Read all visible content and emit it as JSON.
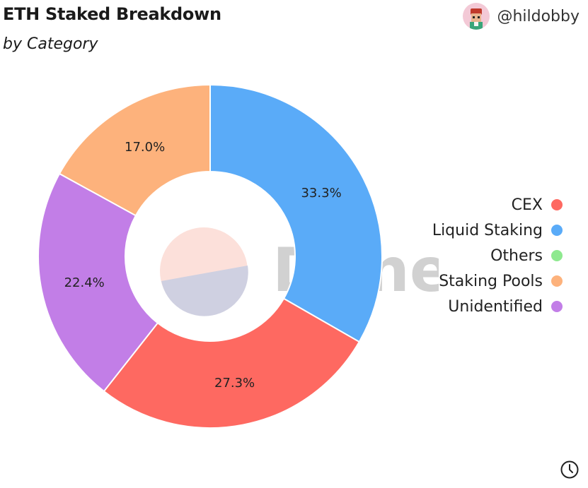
{
  "header": {
    "title": "ETH Staked Breakdown",
    "subtitle": "by Category",
    "author": "@hildobby"
  },
  "watermark": {
    "text": "Dune",
    "icon": "dune-logo-icon"
  },
  "footer": {
    "icon": "clock-icon"
  },
  "colors": {
    "CEX": "#fe6961",
    "Liquid Staking": "#5aabf8",
    "Others": "#8ee98f",
    "Staking Pools": "#fdb27c",
    "Unidentified": "#c27ee7"
  },
  "chart_data": {
    "type": "pie",
    "title": "ETH Staked Breakdown",
    "subtitle": "by Category",
    "donut": true,
    "legend_position": "right",
    "legend": [
      "CEX",
      "Liquid Staking",
      "Others",
      "Staking Pools",
      "Unidentified"
    ],
    "slices": [
      {
        "name": "Liquid Staking",
        "value": 33.3,
        "label": "33.3%"
      },
      {
        "name": "CEX",
        "value": 27.3,
        "label": "27.3%"
      },
      {
        "name": "Unidentified",
        "value": 22.4,
        "label": "22.4%"
      },
      {
        "name": "Staking Pools",
        "value": 17.0,
        "label": "17.0%"
      }
    ]
  }
}
